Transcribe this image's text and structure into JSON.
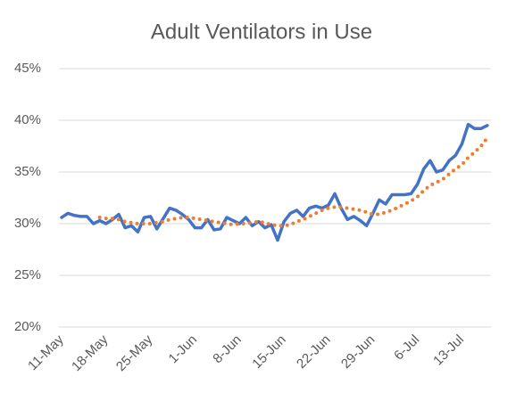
{
  "chart_data": {
    "type": "line",
    "title": "Adult Ventilators in Use",
    "categories": [
      "11-May",
      null,
      null,
      null,
      null,
      null,
      null,
      "18-May",
      null,
      null,
      null,
      null,
      null,
      null,
      "25-May",
      null,
      null,
      null,
      null,
      null,
      null,
      "1-Jun",
      null,
      null,
      null,
      null,
      null,
      null,
      "8-Jun",
      null,
      null,
      null,
      null,
      null,
      null,
      "15-Jun",
      null,
      null,
      null,
      null,
      null,
      null,
      "22-Jun",
      null,
      null,
      null,
      null,
      null,
      null,
      "29-Jun",
      null,
      null,
      null,
      null,
      null,
      null,
      "6-Jul",
      null,
      null,
      null,
      null,
      null,
      null,
      "13-Jul",
      null,
      null,
      null,
      null
    ],
    "series": [
      {
        "color": "#4472c4",
        "style": "solid",
        "values": [
          30.6,
          31.0,
          30.8,
          30.7,
          30.7,
          30.0,
          30.3,
          30.0,
          30.4,
          30.9,
          29.6,
          29.8,
          29.2,
          30.6,
          30.7,
          29.5,
          30.5,
          31.5,
          31.3,
          30.9,
          30.4,
          29.6,
          29.6,
          30.4,
          29.4,
          29.5,
          30.6,
          30.3,
          30.0,
          30.6,
          29.8,
          30.2,
          29.6,
          29.9,
          28.4,
          30.2,
          31.0,
          31.3,
          30.7,
          31.5,
          31.7,
          31.5,
          31.8,
          32.9,
          31.5,
          30.4,
          30.7,
          30.3,
          29.8,
          31.0,
          32.3,
          31.9,
          32.8,
          32.8,
          32.8,
          32.9,
          33.8,
          35.3,
          36.1,
          35.0,
          35.2,
          36.1,
          36.6,
          37.7,
          39.6,
          39.2,
          39.2,
          39.5
        ]
      },
      {
        "color": "#ed7d31",
        "style": "dotted",
        "values": [
          null,
          null,
          null,
          null,
          null,
          null,
          30.6,
          30.5,
          30.5,
          30.4,
          30.2,
          30.1,
          30.0,
          30.0,
          30.0,
          30.1,
          30.2,
          30.4,
          30.5,
          30.6,
          30.6,
          30.5,
          30.4,
          30.3,
          30.2,
          30.1,
          30.0,
          29.9,
          30.0,
          30.0,
          30.1,
          30.2,
          30.1,
          29.9,
          29.8,
          29.8,
          29.9,
          30.2,
          30.4,
          30.7,
          31.0,
          31.3,
          31.5,
          31.6,
          31.6,
          31.5,
          31.4,
          31.3,
          31.1,
          30.9,
          30.9,
          31.1,
          31.3,
          31.6,
          31.9,
          32.2,
          32.6,
          33.2,
          33.7,
          34.0,
          34.3,
          34.8,
          35.3,
          35.7,
          36.4,
          36.9,
          37.5,
          38.3
        ]
      }
    ],
    "ylim": [
      20,
      45
    ],
    "yticks": [
      {
        "value": 20,
        "label": "20%"
      },
      {
        "value": 25,
        "label": "25%"
      },
      {
        "value": 30,
        "label": "30%"
      },
      {
        "value": 35,
        "label": "35%"
      },
      {
        "value": 40,
        "label": "40%"
      },
      {
        "value": 45,
        "label": "45%"
      }
    ],
    "grid": true
  }
}
